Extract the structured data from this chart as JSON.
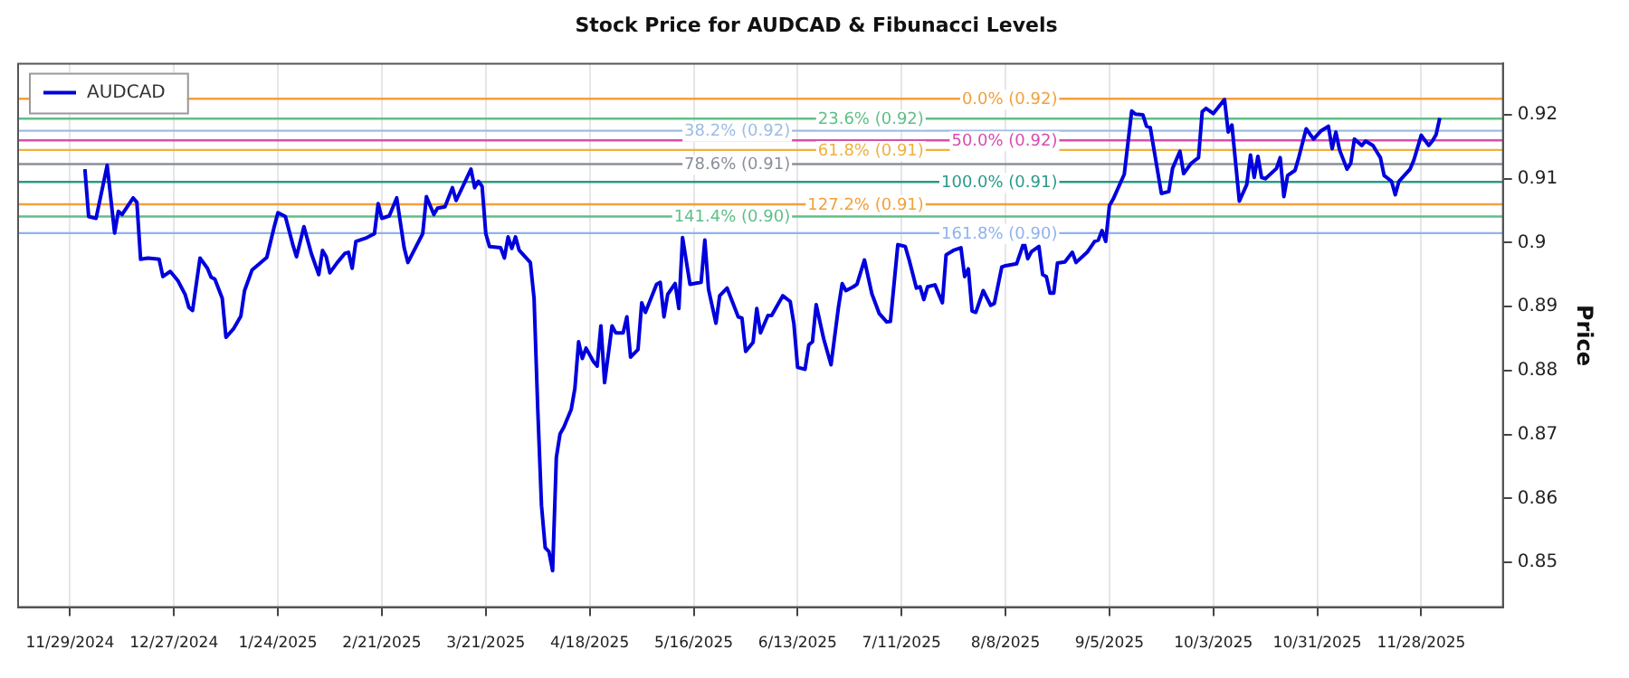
{
  "chart_data": {
    "type": "line",
    "title": "Stock Price for AUDCAD & Fibunacci Levels",
    "ylabel": "Price",
    "x": [
      "2024-12-03",
      "2024-12-04",
      "2024-12-06",
      "2024-12-09",
      "2024-12-11",
      "2024-12-12",
      "2024-12-13",
      "2024-12-16",
      "2024-12-17",
      "2024-12-18",
      "2024-12-20",
      "2024-12-23",
      "2024-12-24",
      "2024-12-26",
      "2024-12-28",
      "2024-12-30",
      "2024-12-31",
      "2025-01-01",
      "2025-01-03",
      "2025-01-05",
      "2025-01-06",
      "2025-01-07",
      "2025-01-09",
      "2025-01-10",
      "2025-01-12",
      "2025-01-14",
      "2025-01-15",
      "2025-01-17",
      "2025-01-21",
      "2025-01-23",
      "2025-01-24",
      "2025-01-26",
      "2025-01-28",
      "2025-01-29",
      "2025-01-31",
      "2025-02-02",
      "2025-02-04",
      "2025-02-05",
      "2025-02-06",
      "2025-02-07",
      "2025-02-09",
      "2025-02-11",
      "2025-02-12",
      "2025-02-13",
      "2025-02-14",
      "2025-02-17",
      "2025-02-19",
      "2025-02-20",
      "2025-02-21",
      "2025-02-23",
      "2025-02-25",
      "2025-02-27",
      "2025-02-28",
      "2025-03-04",
      "2025-03-05",
      "2025-03-07",
      "2025-03-08",
      "2025-03-10",
      "2025-03-12",
      "2025-03-13",
      "2025-03-17",
      "2025-03-18",
      "2025-03-19",
      "2025-03-20",
      "2025-03-21",
      "2025-03-22",
      "2025-03-25",
      "2025-03-26",
      "2025-03-27",
      "2025-03-28",
      "2025-03-29",
      "2025-03-30",
      "2025-04-02",
      "2025-04-03",
      "2025-04-04",
      "2025-04-05",
      "2025-04-06",
      "2025-04-07",
      "2025-04-08",
      "2025-04-09",
      "2025-04-10",
      "2025-04-11",
      "2025-04-13",
      "2025-04-14",
      "2025-04-15",
      "2025-04-16",
      "2025-04-17",
      "2025-04-19",
      "2025-04-20",
      "2025-04-21",
      "2025-04-22",
      "2025-04-24",
      "2025-04-25",
      "2025-04-27",
      "2025-04-28",
      "2025-04-29",
      "2025-05-01",
      "2025-05-02",
      "2025-05-03",
      "2025-05-06",
      "2025-05-07",
      "2025-05-08",
      "2025-05-09",
      "2025-05-11",
      "2025-05-12",
      "2025-05-13",
      "2025-05-15",
      "2025-05-18",
      "2025-05-19",
      "2025-05-20",
      "2025-05-22",
      "2025-05-23",
      "2025-05-25",
      "2025-05-28",
      "2025-05-29",
      "2025-05-30",
      "2025-06-01",
      "2025-06-02",
      "2025-06-03",
      "2025-06-05",
      "2025-06-06",
      "2025-06-09",
      "2025-06-11",
      "2025-06-12",
      "2025-06-13",
      "2025-06-15",
      "2025-06-16",
      "2025-06-17",
      "2025-06-18",
      "2025-06-20",
      "2025-06-22",
      "2025-06-24",
      "2025-06-25",
      "2025-06-26",
      "2025-06-28",
      "2025-06-29",
      "2025-07-01",
      "2025-07-03",
      "2025-07-05",
      "2025-07-07",
      "2025-07-08",
      "2025-07-10",
      "2025-07-12",
      "2025-07-13",
      "2025-07-15",
      "2025-07-16",
      "2025-07-17",
      "2025-07-18",
      "2025-07-20",
      "2025-07-22",
      "2025-07-23",
      "2025-07-25",
      "2025-07-27",
      "2025-07-28",
      "2025-07-29",
      "2025-07-30",
      "2025-07-31",
      "2025-08-02",
      "2025-08-04",
      "2025-08-05",
      "2025-08-07",
      "2025-08-08",
      "2025-08-11",
      "2025-08-13",
      "2025-08-14",
      "2025-08-15",
      "2025-08-17",
      "2025-08-18",
      "2025-08-19",
      "2025-08-20",
      "2025-08-21",
      "2025-08-22",
      "2025-08-24",
      "2025-08-26",
      "2025-08-27",
      "2025-08-30",
      "2025-09-01",
      "2025-09-02",
      "2025-09-03",
      "2025-09-04",
      "2025-09-05",
      "2025-09-06",
      "2025-09-09",
      "2025-09-11",
      "2025-09-12",
      "2025-09-14",
      "2025-09-15",
      "2025-09-16",
      "2025-09-19",
      "2025-09-21",
      "2025-09-22",
      "2025-09-24",
      "2025-09-25",
      "2025-09-27",
      "2025-09-29",
      "2025-09-30",
      "2025-10-01",
      "2025-10-03",
      "2025-10-06",
      "2025-10-07",
      "2025-10-08",
      "2025-10-10",
      "2025-10-12",
      "2025-10-13",
      "2025-10-14",
      "2025-10-15",
      "2025-10-16",
      "2025-10-17",
      "2025-10-20",
      "2025-10-21",
      "2025-10-22",
      "2025-10-23",
      "2025-10-25",
      "2025-10-26",
      "2025-10-28",
      "2025-10-30",
      "2025-11-01",
      "2025-11-03",
      "2025-11-04",
      "2025-11-05",
      "2025-11-06",
      "2025-11-08",
      "2025-11-09",
      "2025-11-10",
      "2025-11-12",
      "2025-11-13",
      "2025-11-15",
      "2025-11-17",
      "2025-11-18",
      "2025-11-20",
      "2025-11-21",
      "2025-11-22",
      "2025-11-25",
      "2025-11-26",
      "2025-11-28",
      "2025-11-30",
      "2025-12-01",
      "2025-12-02",
      "2025-12-03"
    ],
    "series": [
      {
        "name": "AUDCAD",
        "color": "#0000dd",
        "values": [
          0.9115,
          0.9041,
          0.9038,
          0.9121,
          0.9015,
          0.9049,
          0.9044,
          0.907,
          0.9063,
          0.8974,
          0.8976,
          0.8974,
          0.8947,
          0.8955,
          0.8941,
          0.8919,
          0.8899,
          0.8894,
          0.8976,
          0.896,
          0.8946,
          0.8943,
          0.8913,
          0.8852,
          0.8865,
          0.8885,
          0.8925,
          0.8957,
          0.8977,
          0.9025,
          0.9047,
          0.9041,
          0.8997,
          0.8978,
          0.9025,
          0.8983,
          0.895,
          0.8988,
          0.8978,
          0.8953,
          0.8969,
          0.8983,
          0.8985,
          0.896,
          0.9002,
          0.9008,
          0.9014,
          0.9061,
          0.9038,
          0.9042,
          0.907,
          0.8992,
          0.8969,
          0.9014,
          0.9072,
          0.9044,
          0.9054,
          0.9056,
          0.9086,
          0.9066,
          0.9115,
          0.9086,
          0.9096,
          0.9088,
          0.9014,
          0.8994,
          0.8992,
          0.8976,
          0.9009,
          0.8991,
          0.9009,
          0.8988,
          0.8969,
          0.8913,
          0.8739,
          0.8589,
          0.8523,
          0.8517,
          0.8487,
          0.8664,
          0.8701,
          0.8711,
          0.8739,
          0.8772,
          0.8845,
          0.8819,
          0.8835,
          0.8814,
          0.8807,
          0.887,
          0.8781,
          0.887,
          0.8859,
          0.8859,
          0.8884,
          0.8821,
          0.8833,
          0.8906,
          0.8891,
          0.8935,
          0.8938,
          0.8884,
          0.8919,
          0.8936,
          0.8897,
          0.9008,
          0.8935,
          0.8938,
          0.9004,
          0.8927,
          0.8874,
          0.8917,
          0.8929,
          0.8884,
          0.8882,
          0.883,
          0.8844,
          0.8897,
          0.8859,
          0.8886,
          0.8886,
          0.8917,
          0.8908,
          0.8873,
          0.8805,
          0.8802,
          0.884,
          0.8845,
          0.8903,
          0.885,
          0.8809,
          0.8899,
          0.8936,
          0.8925,
          0.8931,
          0.8935,
          0.8973,
          0.892,
          0.8889,
          0.8876,
          0.8877,
          0.8997,
          0.8994,
          0.8974,
          0.8929,
          0.8931,
          0.8911,
          0.8931,
          0.8934,
          0.8906,
          0.8981,
          0.8988,
          0.8992,
          0.8947,
          0.8959,
          0.8893,
          0.8891,
          0.8925,
          0.8902,
          0.8905,
          0.8962,
          0.8964,
          0.8967,
          0.9001,
          0.8975,
          0.8986,
          0.8994,
          0.895,
          0.8947,
          0.8921,
          0.8921,
          0.8968,
          0.897,
          0.8985,
          0.8969,
          0.8985,
          0.9002,
          0.9004,
          0.9019,
          0.9002,
          0.9058,
          0.9068,
          0.9107,
          0.9206,
          0.9201,
          0.92,
          0.9182,
          0.918,
          0.9077,
          0.908,
          0.9116,
          0.9143,
          0.9108,
          0.9124,
          0.9133,
          0.9205,
          0.921,
          0.9202,
          0.9224,
          0.9173,
          0.9184,
          0.9065,
          0.9091,
          0.9137,
          0.9102,
          0.9135,
          0.9102,
          0.91,
          0.9116,
          0.9133,
          0.9072,
          0.9105,
          0.9113,
          0.9133,
          0.9178,
          0.9162,
          0.9175,
          0.9182,
          0.9147,
          0.9173,
          0.9145,
          0.9115,
          0.9124,
          0.9162,
          0.9152,
          0.9159,
          0.9152,
          0.9133,
          0.9105,
          0.9096,
          0.9075,
          0.9096,
          0.9115,
          0.9129,
          0.9168,
          0.9152,
          0.9159,
          0.9169,
          0.9195
        ]
      }
    ],
    "xlim": [
      "2024-11-15",
      "2025-12-20"
    ],
    "xticks": [
      {
        "value": "2024-11-29",
        "label": "11/29/2024"
      },
      {
        "value": "2024-12-27",
        "label": "12/27/2024"
      },
      {
        "value": "2025-01-24",
        "label": "1/24/2025"
      },
      {
        "value": "2025-02-21",
        "label": "2/21/2025"
      },
      {
        "value": "2025-03-21",
        "label": "3/21/2025"
      },
      {
        "value": "2025-04-18",
        "label": "4/18/2025"
      },
      {
        "value": "2025-05-16",
        "label": "5/16/2025"
      },
      {
        "value": "2025-06-13",
        "label": "6/13/2025"
      },
      {
        "value": "2025-07-11",
        "label": "7/11/2025"
      },
      {
        "value": "2025-08-08",
        "label": "8/8/2025"
      },
      {
        "value": "2025-09-05",
        "label": "9/5/2025"
      },
      {
        "value": "2025-10-03",
        "label": "10/3/2025"
      },
      {
        "value": "2025-10-31",
        "label": "10/31/2025"
      },
      {
        "value": "2025-11-28",
        "label": "11/28/2025"
      }
    ],
    "ylim": [
      0.843,
      0.928
    ],
    "yticks": [
      0.85,
      0.86,
      0.87,
      0.88,
      0.89,
      0.9,
      0.91,
      0.92
    ],
    "ref_lines": [
      {
        "axis": "y",
        "value": 0.9225,
        "label": "0.0% (0.92)",
        "color": "#f2a03d"
      },
      {
        "axis": "y",
        "value": 0.9194,
        "label": "23.6% (0.92)",
        "color": "#5fbf86"
      },
      {
        "axis": "y",
        "value": 0.9175,
        "label": "38.2% (0.92)",
        "color": "#9dbde3"
      },
      {
        "axis": "y",
        "value": 0.916,
        "label": "50.0% (0.92)",
        "color": "#d94cae"
      },
      {
        "axis": "y",
        "value": 0.9145,
        "label": "61.8% (0.91)",
        "color": "#eeb13f"
      },
      {
        "axis": "y",
        "value": 0.9123,
        "label": "78.6% (0.91)",
        "color": "#8a8f99"
      },
      {
        "axis": "y",
        "value": 0.9095,
        "label": "100.0% (0.91)",
        "color": "#2a9a8a"
      },
      {
        "axis": "y",
        "value": 0.906,
        "label": "127.2% (0.91)",
        "color": "#f2a03d"
      },
      {
        "axis": "y",
        "value": 0.9041,
        "label": "141.4% (0.90)",
        "color": "#5fbf86"
      },
      {
        "axis": "y",
        "value": 0.9015,
        "label": "161.8% (0.90)",
        "color": "#8fb3ee"
      }
    ],
    "grid": "x",
    "legend": "top left"
  }
}
